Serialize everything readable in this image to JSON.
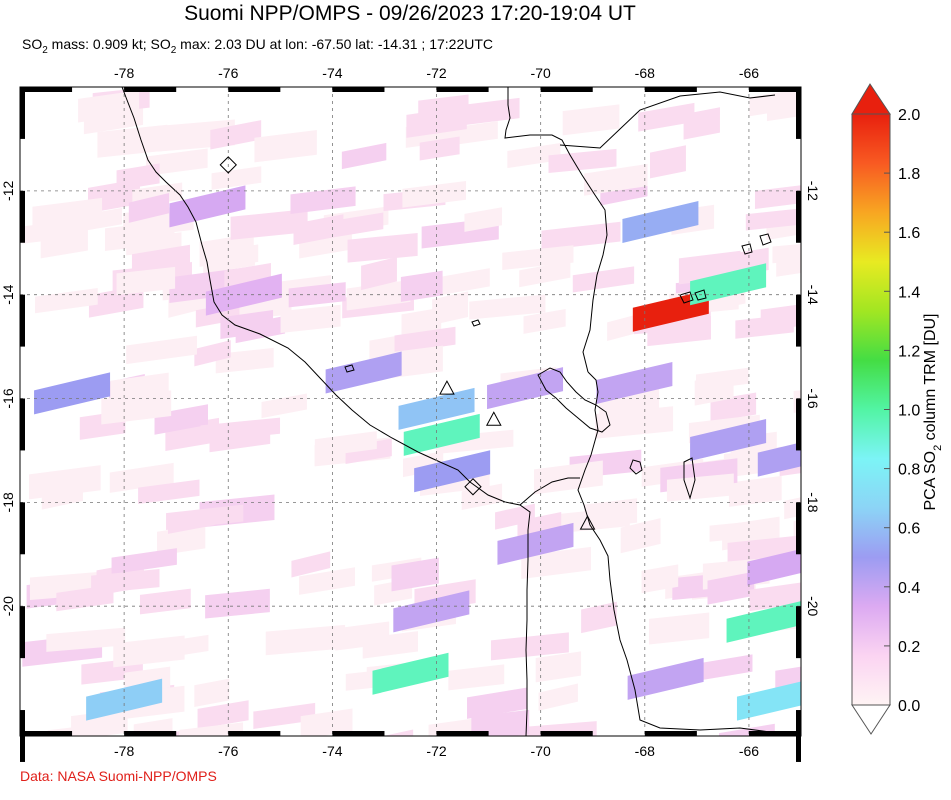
{
  "title": "Suomi NPP/OMPS - 09/26/2023 17:20-19:04 UT",
  "subtitle": {
    "p1": "SO",
    "p2": " mass: 0.909 kt; SO",
    "p3": " max: 2.03 DU at lon: -67.50 lat: -14.31 ; 17:22UTC",
    "sub": "2"
  },
  "credit": "Data: NASA Suomi-NPP/OMPS",
  "map": {
    "lon_range": [
      -80.0,
      -65.0
    ],
    "lat_range": [
      -22.5,
      -10.0
    ],
    "lon_ticks": [
      "-78",
      "-76",
      "-74",
      "-72",
      "-70",
      "-68",
      "-66"
    ],
    "lat_ticks": [
      "-12",
      "-14",
      "-16",
      "-18",
      "-20"
    ],
    "grid": "dashed"
  },
  "colorbar": {
    "labels": [
      "2.0",
      "1.8",
      "1.6",
      "1.4",
      "1.2",
      "1.0",
      "0.8",
      "0.6",
      "0.4",
      "0.2",
      "0.0"
    ],
    "title_pre": "PCA SO",
    "title_sub": "2",
    "title_post": " column TRM [DU]",
    "range": [
      0.0,
      2.0
    ],
    "colors": [
      "#fff4f4",
      "#fbd4f2",
      "#dcaaf2",
      "#9c9cf2",
      "#8cd4f6",
      "#7cf4f6",
      "#52f4a4",
      "#44dd44",
      "#a2e622",
      "#e8ea22",
      "#f8a622",
      "#f85a22",
      "#e8200e"
    ]
  },
  "volcanoes": [
    {
      "name": "volcano",
      "lon": -71.8,
      "lat": -15.8
    },
    {
      "name": "volcano",
      "lon": -70.9,
      "lat": -16.4
    },
    {
      "name": "volcano",
      "lon": -69.1,
      "lat": -18.4
    }
  ],
  "diamonds": [
    {
      "lon": -76.0,
      "lat": -11.5
    },
    {
      "lon": -71.3,
      "lat": -17.7
    }
  ],
  "so2_pixels": [
    {
      "lon": -67.5,
      "lat": -14.31,
      "v": 2.03
    },
    {
      "lon": -66.4,
      "lat": -13.8,
      "v": 0.95
    },
    {
      "lon": -71.9,
      "lat": -16.7,
      "v": 0.95
    },
    {
      "lon": -72.0,
      "lat": -16.2,
      "v": 0.62
    },
    {
      "lon": -72.5,
      "lat": -21.3,
      "v": 0.95
    },
    {
      "lon": -65.7,
      "lat": -20.3,
      "v": 0.95
    },
    {
      "lon": -65.5,
      "lat": -21.8,
      "v": 0.75
    },
    {
      "lon": -78.0,
      "lat": -21.8,
      "v": 0.65
    },
    {
      "lon": -67.7,
      "lat": -12.6,
      "v": 0.55
    },
    {
      "lon": -71.7,
      "lat": -17.4,
      "v": 0.5
    },
    {
      "lon": -73.4,
      "lat": -15.5,
      "v": 0.45
    },
    {
      "lon": -66.4,
      "lat": -16.8,
      "v": 0.45
    },
    {
      "lon": -68.2,
      "lat": -15.7,
      "v": 0.4
    },
    {
      "lon": -70.3,
      "lat": -15.8,
      "v": 0.4
    },
    {
      "lon": -70.1,
      "lat": -18.8,
      "v": 0.4
    },
    {
      "lon": -72.1,
      "lat": -20.1,
      "v": 0.4
    },
    {
      "lon": -67.6,
      "lat": -21.4,
      "v": 0.4
    },
    {
      "lon": -76.4,
      "lat": -12.3,
      "v": 0.35
    },
    {
      "lon": -79.0,
      "lat": -15.9,
      "v": 0.5
    },
    {
      "lon": -65.3,
      "lat": -19.2,
      "v": 0.35
    },
    {
      "lon": -65.1,
      "lat": -17.1,
      "v": 0.45
    },
    {
      "lon": -75.7,
      "lat": -14.0,
      "v": 0.3
    }
  ]
}
